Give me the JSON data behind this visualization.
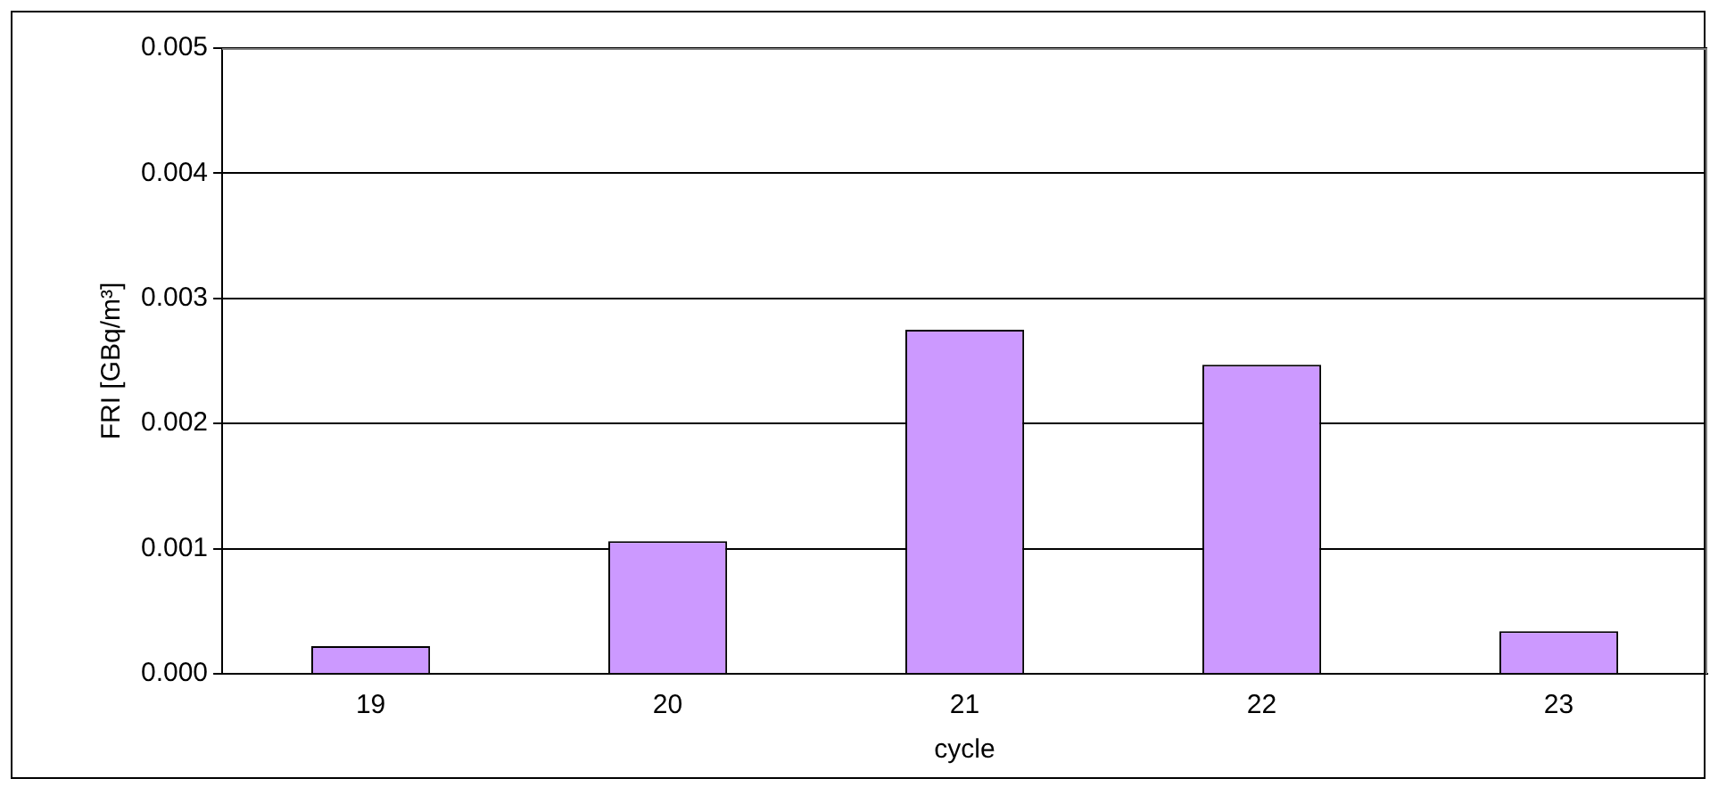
{
  "chart_data": {
    "type": "bar",
    "xlabel": "cycle",
    "ylabel": "FRI [GBq/m³]",
    "categories": [
      "19",
      "20",
      "21",
      "22",
      "23"
    ],
    "values": [
      0.00022,
      0.00106,
      0.00275,
      0.00247,
      0.00034
    ],
    "color": "#cc99ff",
    "ylim": [
      0,
      0.005
    ],
    "yticks": [
      {
        "value": 0,
        "label": "0.000"
      },
      {
        "value": 0.001,
        "label": "0.001"
      },
      {
        "value": 0.002,
        "label": "0.002"
      },
      {
        "value": 0.003,
        "label": "0.003"
      },
      {
        "value": 0.004,
        "label": "0.004"
      },
      {
        "value": 0.005,
        "label": "0.005"
      }
    ],
    "grid": "y",
    "legend": false
  }
}
